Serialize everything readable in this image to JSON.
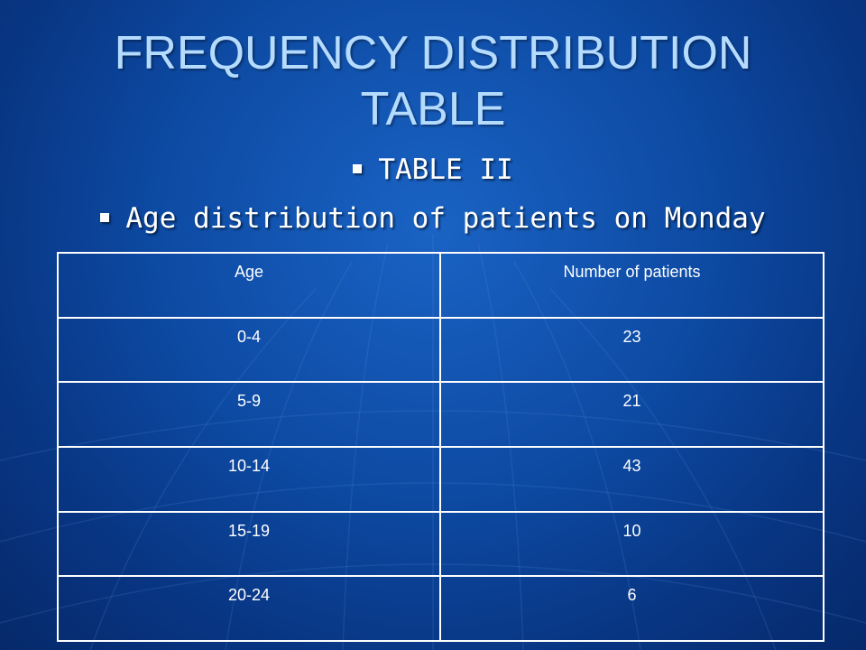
{
  "slide": {
    "title_line1": "FREQUENCY DISTRIBUTION",
    "title_line2": "TABLE",
    "bullets": [
      "TABLE II",
      "Age distribution of patients on Monday"
    ]
  },
  "table": {
    "headers": [
      "Age",
      "Number of patients"
    ],
    "rows": [
      [
        "0-4",
        "23"
      ],
      [
        "5-9",
        "21"
      ],
      [
        "10-14",
        "43"
      ],
      [
        "15-19",
        "10"
      ],
      [
        "20-24",
        "6"
      ]
    ]
  },
  "colors": {
    "background": "#0d4aa3",
    "title": "#b5dcff",
    "text": "#ffffff"
  }
}
